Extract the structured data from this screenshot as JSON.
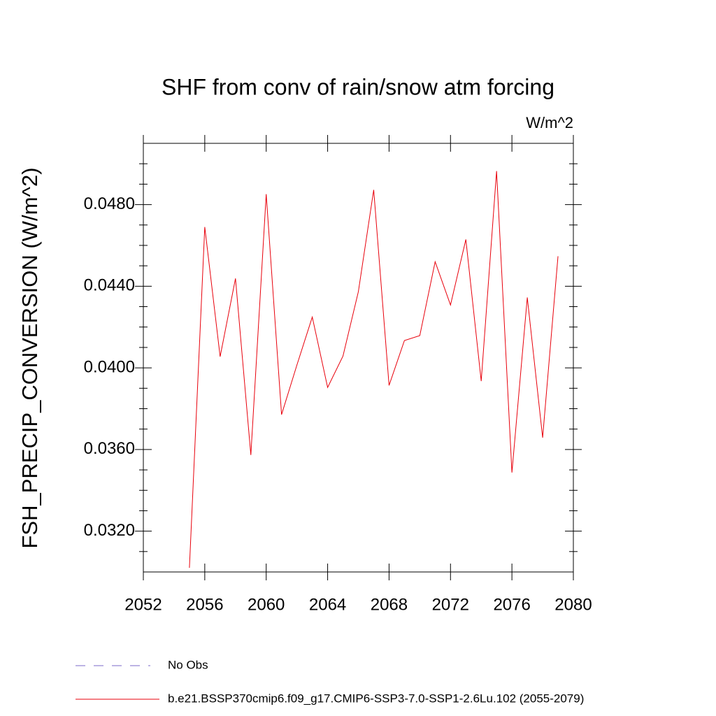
{
  "chart_data": {
    "type": "line",
    "title": "SHF from conv of rain/snow atm forcing",
    "units": "W/m^2",
    "y_label": "FSH_PRECIP_CONVERSION  (W/m^2)",
    "x": [
      2055,
      2056,
      2057,
      2058,
      2059,
      2060,
      2061,
      2062,
      2063,
      2064,
      2065,
      2066,
      2067,
      2068,
      2069,
      2070,
      2071,
      2072,
      2073,
      2074,
      2075,
      2076,
      2077,
      2078,
      2079
    ],
    "series": [
      {
        "name": "b.e21.BSSP370cmip6.f09_g17.CMIP6-SSP3-7.0-SSP1-2.6Lu.102 (2055-2079)",
        "color": "#e8000b",
        "values": [
          0.0302,
          0.0469,
          0.04055,
          0.04438,
          0.03573,
          0.04851,
          0.03771,
          0.04014,
          0.04249,
          0.03904,
          0.04058,
          0.04373,
          0.04872,
          0.03914,
          0.04134,
          0.04158,
          0.0452,
          0.04308,
          0.04629,
          0.03935,
          0.04964,
          0.03487,
          0.04345,
          0.03658,
          0.04547
        ]
      }
    ],
    "legend_extra": [
      {
        "name": "No Obs",
        "color": "#7b68c8",
        "dashed": true
      }
    ],
    "xlim": [
      2052,
      2080
    ],
    "xticks": [
      2052,
      2056,
      2060,
      2064,
      2068,
      2072,
      2076,
      2080
    ],
    "ylim": [
      0.03,
      0.051
    ],
    "yticks": [
      {
        "value": 0.032,
        "label": "0.0320"
      },
      {
        "value": 0.036,
        "label": "0.0360"
      },
      {
        "value": 0.04,
        "label": "0.0400"
      },
      {
        "value": 0.044,
        "label": "0.0440"
      },
      {
        "value": 0.048,
        "label": "0.0480"
      }
    ],
    "yminor_ticks": [
      0.031,
      0.033,
      0.034,
      0.035,
      0.037,
      0.038,
      0.039,
      0.041,
      0.042,
      0.043,
      0.045,
      0.046,
      0.047,
      0.049,
      0.05
    ],
    "grid": false
  }
}
